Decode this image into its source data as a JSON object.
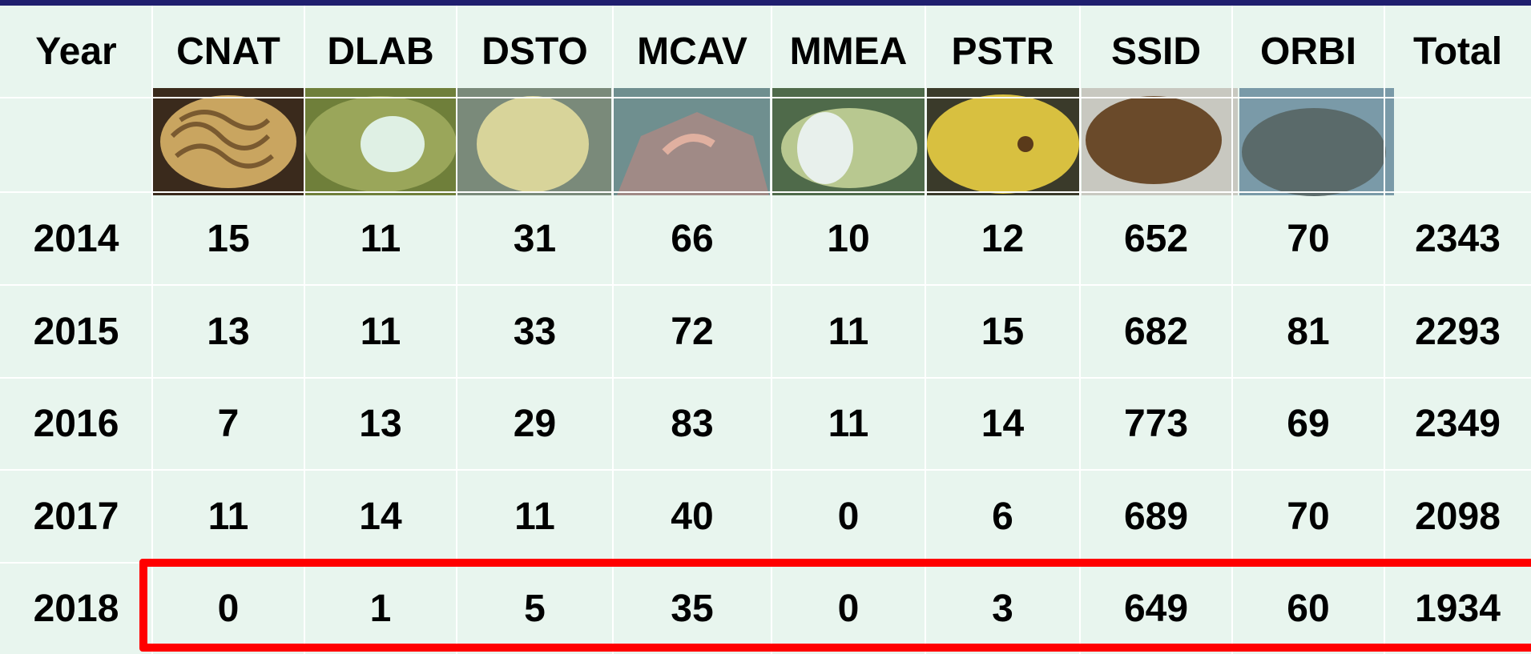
{
  "table": {
    "header": [
      "Year",
      "CNAT",
      "DLAB",
      "DSTO",
      "MCAV",
      "MMEA",
      "PSTR",
      "SSID",
      "ORBI",
      "Total"
    ],
    "rows": [
      [
        2014,
        15,
        11,
        31,
        66,
        10,
        12,
        652,
        70,
        2343
      ],
      [
        2015,
        13,
        11,
        33,
        72,
        11,
        15,
        682,
        81,
        2293
      ],
      [
        2016,
        7,
        13,
        29,
        83,
        11,
        14,
        773,
        69,
        2349
      ],
      [
        2017,
        11,
        14,
        11,
        40,
        0,
        6,
        689,
        70,
        2098
      ],
      [
        2018,
        0,
        1,
        5,
        35,
        0,
        3,
        649,
        60,
        1934
      ]
    ]
  }
}
